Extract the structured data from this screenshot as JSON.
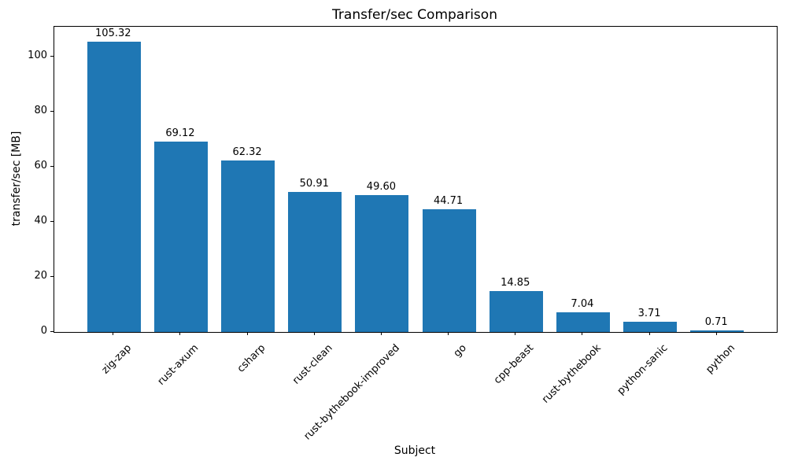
{
  "chart_data": {
    "type": "bar",
    "title": "Transfer/sec Comparison",
    "xlabel": "Subject",
    "ylabel": "transfer/sec [MB]",
    "categories": [
      "zig-zap",
      "rust-axum",
      "csharp",
      "rust-clean",
      "rust-bythebook-improved",
      "go",
      "cpp-beast",
      "rust-bythebook",
      "python-sanic",
      "python"
    ],
    "values": [
      105.32,
      69.12,
      62.32,
      50.91,
      49.6,
      44.71,
      14.85,
      7.04,
      3.71,
      0.71
    ],
    "value_labels": [
      "105.32",
      "69.12",
      "62.32",
      "50.91",
      "49.60",
      "44.71",
      "14.85",
      "7.04",
      "3.71",
      "0.71"
    ],
    "yticks": [
      0,
      20,
      40,
      60,
      80,
      100
    ],
    "ylim": [
      0,
      110.86
    ],
    "bar_color": "#1f77b4",
    "grid": false,
    "legend": null,
    "x_tick_rotation_deg": 45
  }
}
